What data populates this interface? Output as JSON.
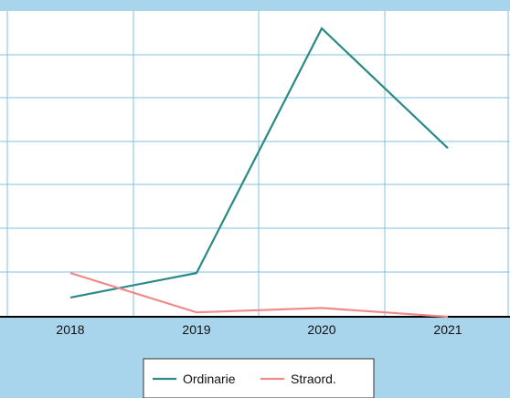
{
  "chart_data": {
    "type": "line",
    "categories": [
      "2018",
      "2019",
      "2020",
      "2021"
    ],
    "series": [
      {
        "name": "Ordinarie",
        "values": [
          22,
          50,
          330,
          193
        ],
        "color": "#2a8a86"
      },
      {
        "name": "Straord.",
        "values": [
          50,
          5,
          10,
          0
        ],
        "color": "#f08a8a"
      }
    ],
    "ylim": [
      0,
      350
    ],
    "grid": true,
    "grid_color": "#7fc0dc",
    "plot_background": "#ffffff",
    "legend_position": "bottom-center"
  }
}
